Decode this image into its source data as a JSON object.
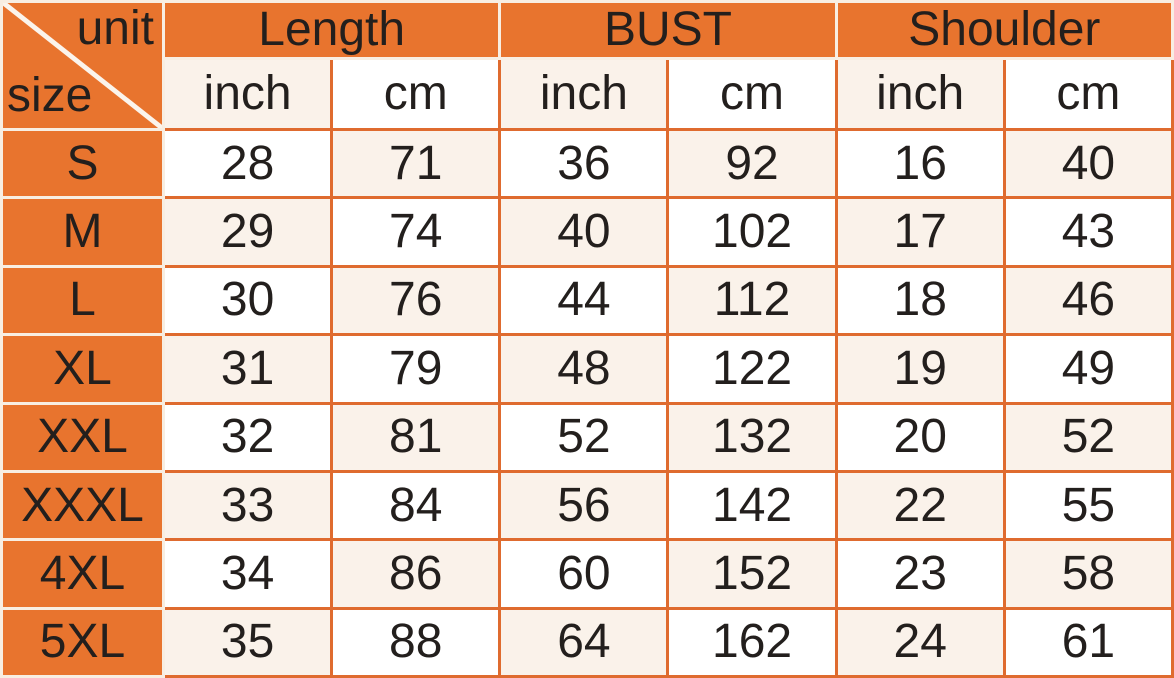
{
  "chart_data": {
    "type": "table",
    "corner": {
      "top": "unit",
      "bottom": "size"
    },
    "column_groups": [
      {
        "label": "Length"
      },
      {
        "label": "BUST"
      },
      {
        "label": "Shoulder"
      }
    ],
    "unit_headers": [
      "inch",
      "cm",
      "inch",
      "cm",
      "inch",
      "cm"
    ],
    "rows": [
      {
        "size": "S",
        "values": [
          "28",
          "71",
          "36",
          "92",
          "16",
          "40"
        ]
      },
      {
        "size": "M",
        "values": [
          "29",
          "74",
          "40",
          "102",
          "17",
          "43"
        ]
      },
      {
        "size": "L",
        "values": [
          "30",
          "76",
          "44",
          "112",
          "18",
          "46"
        ]
      },
      {
        "size": "XL",
        "values": [
          "31",
          "79",
          "48",
          "122",
          "19",
          "49"
        ]
      },
      {
        "size": "XXL",
        "values": [
          "32",
          "81",
          "52",
          "132",
          "20",
          "52"
        ]
      },
      {
        "size": "XXXL",
        "values": [
          "33",
          "84",
          "56",
          "142",
          "22",
          "55"
        ]
      },
      {
        "size": "4XL",
        "values": [
          "34",
          "86",
          "60",
          "152",
          "23",
          "58"
        ]
      },
      {
        "size": "5XL",
        "values": [
          "35",
          "88",
          "64",
          "162",
          "24",
          "61"
        ]
      }
    ]
  },
  "colors": {
    "orange_fill": "#E8742E",
    "orange_line": "#DF6B2F",
    "cream_line": "#F8EEE2",
    "cream_cell": "#FAF2EA",
    "white_cell": "#FFFFFF",
    "text": "#231F1D"
  }
}
